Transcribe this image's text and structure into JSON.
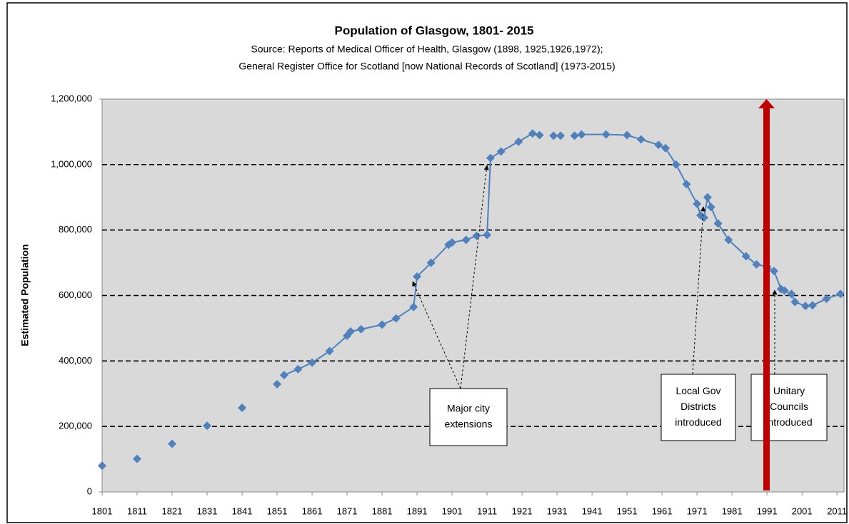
{
  "chart_data": {
    "type": "line",
    "title": "Population of Glasgow, 1801- 2015",
    "subtitle": [
      "Source: Reports of Medical Officer of Health, Glasgow (1898, 1925,1926,1972);",
      "General Register Office for Scotland [now National Records of Scotland] (1973-2015)"
    ],
    "y_label": "Estimated Population",
    "color": "#4f81bd",
    "markers": "diamond",
    "grid": true,
    "xlim": [
      1801,
      2013
    ],
    "xticks": [
      1801,
      1811,
      1821,
      1831,
      1841,
      1851,
      1861,
      1871,
      1881,
      1891,
      1901,
      1911,
      1921,
      1931,
      1941,
      1951,
      1961,
      1971,
      1981,
      1991,
      2001,
      2011
    ],
    "ylim": [
      0,
      1200000
    ],
    "yticks": [
      0,
      {
        "value": 200000,
        "label": "200,000"
      },
      {
        "value": 400000,
        "label": "400,000"
      },
      {
        "value": 600000,
        "label": "600,000"
      },
      {
        "value": 800000,
        "label": "800,000"
      },
      {
        "value": 1000000,
        "label": "1,000,000"
      },
      {
        "value": 1200000,
        "label": "1,200,000"
      }
    ],
    "x": [
      1801,
      1806,
      1811,
      1816,
      1821,
      1826,
      1831,
      1836,
      1841,
      1846,
      1851,
      1852,
      1853,
      1857,
      1861,
      1866,
      1871,
      1872,
      1875,
      1881,
      1885,
      1890,
      1891,
      1895,
      1900,
      1901,
      1905,
      1908,
      1911,
      1912,
      1915,
      1920,
      1924,
      1926,
      1928,
      1930,
      1932,
      1934,
      1936,
      1938,
      1945,
      1951,
      1955,
      1960,
      1962,
      1965,
      1968,
      1971,
      1972,
      1973,
      1974,
      1975,
      1977,
      1980,
      1985,
      1988,
      1991,
      1993,
      1995,
      1996,
      1998,
      1999,
      2002,
      2004,
      2008,
      2012
    ],
    "values": [
      80000,
      null,
      101000,
      null,
      147000,
      null,
      202000,
      null,
      257000,
      null,
      329000,
      null,
      357000,
      375000,
      395000,
      430000,
      477000,
      490000,
      497000,
      511000,
      530000,
      565000,
      658000,
      700000,
      755000,
      762000,
      770000,
      782000,
      785000,
      1020000,
      1040000,
      1070000,
      1095000,
      1090000,
      null,
      1088000,
      1088000,
      null,
      1088000,
      1092000,
      1092000,
      1090000,
      1077000,
      1060000,
      1050000,
      1000000,
      940000,
      880000,
      845000,
      838000,
      900000,
      870000,
      820000,
      770000,
      720000,
      695000,
      688000,
      675000,
      620000,
      615000,
      605000,
      580000,
      568000,
      570000,
      590000,
      605000
    ],
    "annotations": [
      [
        "Major city",
        "extensions"
      ],
      [
        "Local Gov",
        "Districts",
        "introduced"
      ],
      [
        "Unitary",
        "Councils",
        "introduced"
      ]
    ]
  }
}
